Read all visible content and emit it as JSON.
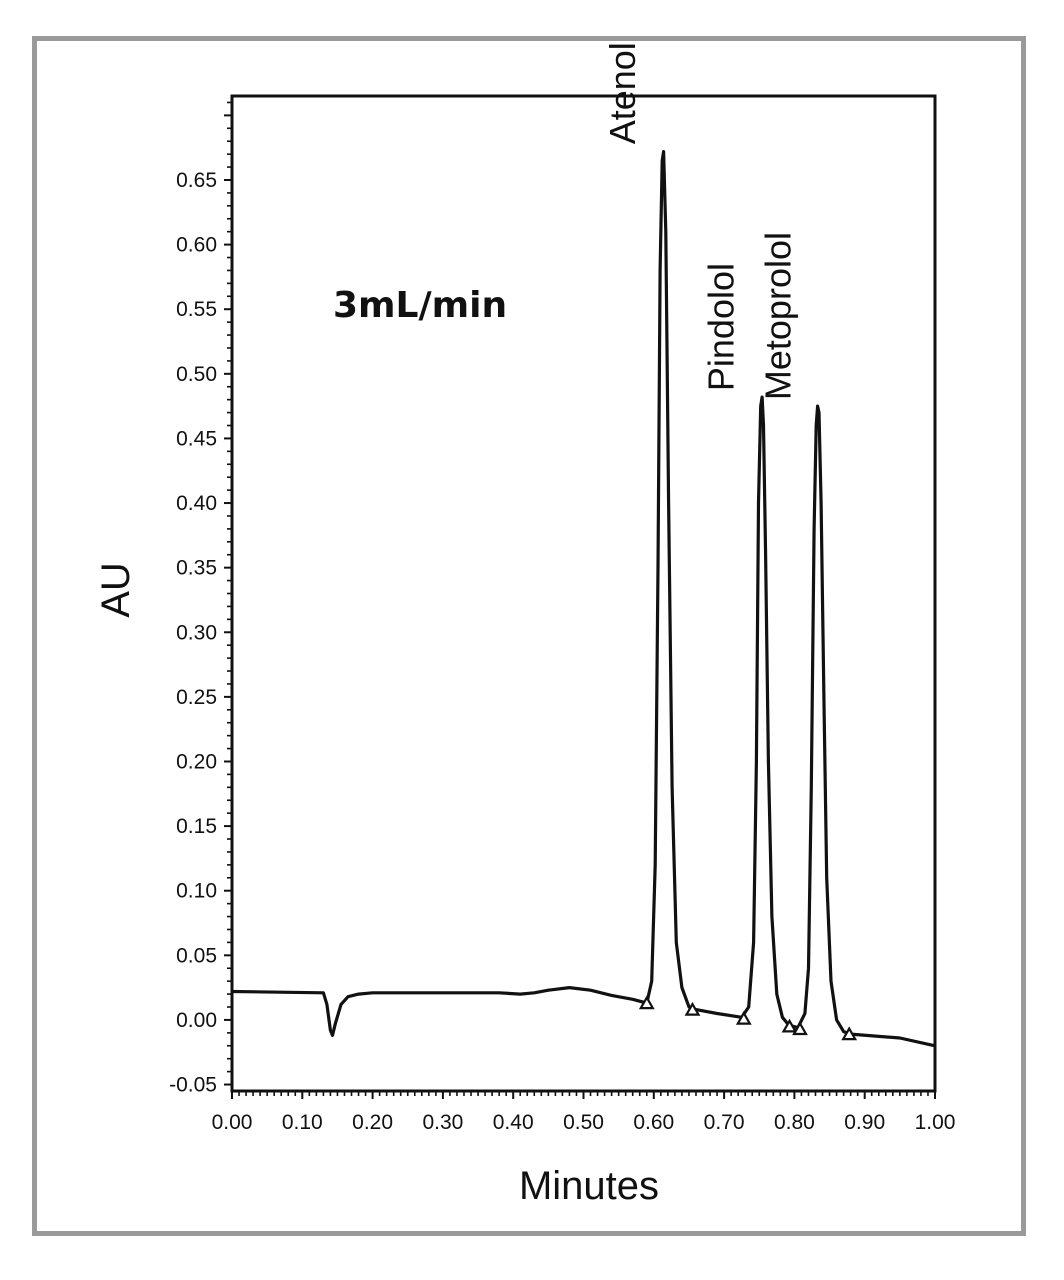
{
  "chart_data": {
    "type": "line",
    "xlabel": "Minutes",
    "ylabel": "AU",
    "annotation": "3mL/min",
    "xlim": [
      0.0,
      1.0
    ],
    "ylim": [
      -0.055,
      0.715
    ],
    "x_ticks": [
      0.0,
      0.1,
      0.2,
      0.3,
      0.4,
      0.5,
      0.6,
      0.7,
      0.8,
      0.9,
      1.0
    ],
    "x_tick_labels": [
      "0.00",
      "0.10",
      "0.20",
      "0.30",
      "0.40",
      "0.50",
      "0.60",
      "0.70",
      "0.80",
      "0.90",
      "1.00"
    ],
    "y_ticks": [
      -0.05,
      0.0,
      0.05,
      0.1,
      0.15,
      0.2,
      0.25,
      0.3,
      0.35,
      0.4,
      0.45,
      0.5,
      0.55,
      0.6,
      0.65
    ],
    "y_tick_labels": [
      "-0.05",
      "0.00",
      "0.05",
      "0.10",
      "0.15",
      "0.20",
      "0.25",
      "0.30",
      "0.35",
      "0.40",
      "0.45",
      "0.50",
      "0.55",
      "0.60",
      "0.65"
    ],
    "grid": false,
    "legend": "none",
    "peaks": [
      {
        "name": "Atenolol",
        "retention_time": 0.613,
        "height": 0.673
      },
      {
        "name": "Pindolol",
        "retention_time": 0.753,
        "height": 0.482
      },
      {
        "name": "Metoprolol",
        "retention_time": 0.834,
        "height": 0.475
      }
    ],
    "peak_markers": [
      {
        "x": 0.59,
        "y": 0.013
      },
      {
        "x": 0.655,
        "y": 0.008
      },
      {
        "x": 0.728,
        "y": 0.001
      },
      {
        "x": 0.793,
        "y": -0.005
      },
      {
        "x": 0.808,
        "y": -0.007
      },
      {
        "x": 0.878,
        "y": -0.011
      }
    ],
    "series": [
      {
        "x": [
          0.0,
          0.13,
          0.135,
          0.14,
          0.143,
          0.147,
          0.155,
          0.165,
          0.18,
          0.2,
          0.3,
          0.38,
          0.41,
          0.43,
          0.45,
          0.48,
          0.51,
          0.54,
          0.57,
          0.59,
          0.597,
          0.602,
          0.606,
          0.609,
          0.612,
          0.614,
          0.617,
          0.621,
          0.626,
          0.632,
          0.64,
          0.65,
          0.66,
          0.69,
          0.725,
          0.735,
          0.742,
          0.746,
          0.749,
          0.752,
          0.754,
          0.756,
          0.759,
          0.763,
          0.768,
          0.775,
          0.783,
          0.792,
          0.805,
          0.815,
          0.82,
          0.824,
          0.828,
          0.831,
          0.833,
          0.835,
          0.838,
          0.842,
          0.846,
          0.852,
          0.86,
          0.87,
          0.88,
          0.95,
          1.0
        ],
        "y": [
          0.022,
          0.021,
          0.012,
          -0.008,
          -0.012,
          -0.003,
          0.012,
          0.018,
          0.02,
          0.021,
          0.021,
          0.021,
          0.02,
          0.021,
          0.023,
          0.025,
          0.023,
          0.019,
          0.016,
          0.013,
          0.03,
          0.12,
          0.35,
          0.58,
          0.665,
          0.672,
          0.61,
          0.4,
          0.18,
          0.06,
          0.025,
          0.01,
          0.008,
          0.005,
          0.002,
          0.01,
          0.06,
          0.2,
          0.4,
          0.475,
          0.482,
          0.46,
          0.36,
          0.2,
          0.08,
          0.02,
          0.002,
          -0.004,
          -0.006,
          0.005,
          0.04,
          0.18,
          0.38,
          0.46,
          0.475,
          0.47,
          0.4,
          0.25,
          0.11,
          0.03,
          0.0,
          -0.009,
          -0.011,
          -0.014,
          -0.02
        ]
      }
    ]
  }
}
